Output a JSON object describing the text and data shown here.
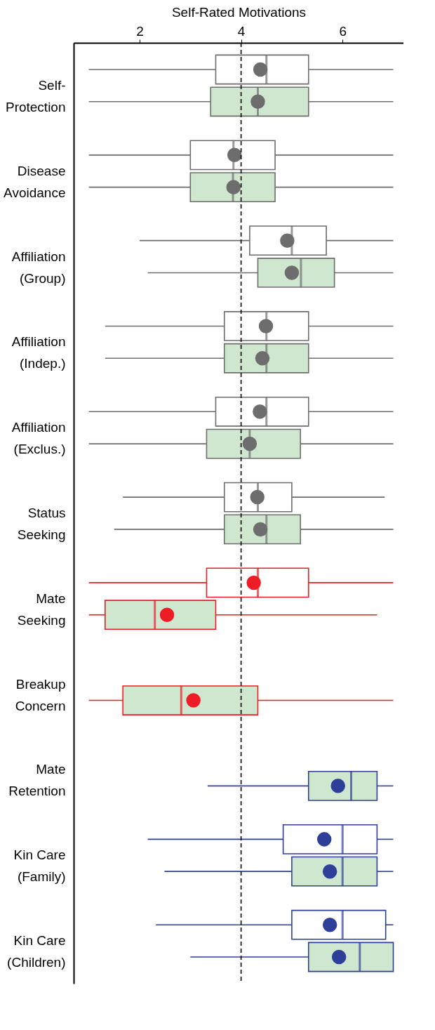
{
  "chart_data": {
    "type": "box",
    "orientation": "horizontal",
    "xlabel": "Self-Rated Motivations",
    "categories": [
      "Self-\nProtection",
      "Disease\nAvoidance",
      "Affiliation\n(Group)",
      "Affiliation\n(Indep.)",
      "Affiliation\n(Exclus.)",
      "Status\nSeeking",
      "Mate\nSeeking",
      "Breakup\nConcern",
      "Mate\nRetention",
      "Kin Care\n(Family)",
      "Kin Care\n(Children)"
    ],
    "xlim": [
      0.7,
      7.2
    ],
    "xticks": [
      2,
      4,
      6
    ],
    "grid": false,
    "ref_lines": [
      {
        "axis": "x",
        "value": 4,
        "line_style": "dashed",
        "color": "#000000"
      }
    ],
    "series": [
      {
        "color": "#ffffff",
        "colors": [
          "#6d6d6d",
          "#6d6d6d",
          "#6d6d6d",
          "#6d6d6d",
          "#6d6d6d",
          "#6d6d6d",
          "#ee1c24",
          null,
          null,
          "#2e3f99",
          "#2e3f99"
        ],
        "boxes": [
          {
            "low": 1,
            "q1": 3.5,
            "median": 4.5,
            "q3": 5.33,
            "high": 7,
            "mean": 4.38
          },
          {
            "low": 1,
            "q1": 3,
            "median": 3.85,
            "q3": 4.67,
            "high": 7,
            "mean": 3.87
          },
          {
            "low": 2,
            "q1": 4.17,
            "median": 5,
            "q3": 5.68,
            "high": 7,
            "mean": 4.91
          },
          {
            "low": 1.32,
            "q1": 3.67,
            "median": 4.5,
            "q3": 5.33,
            "high": 7,
            "mean": 4.49
          },
          {
            "low": 1,
            "q1": 3.5,
            "median": 4.5,
            "q3": 5.33,
            "high": 7,
            "mean": 4.37
          },
          {
            "low": 1.67,
            "q1": 3.67,
            "median": 4.33,
            "q3": 5,
            "high": 6.83,
            "mean": 4.32
          },
          {
            "low": 1,
            "q1": 3.32,
            "median": 4.33,
            "q3": 5.33,
            "high": 7,
            "mean": 4.25
          },
          null,
          null,
          {
            "low": 2.16,
            "q1": 4.83,
            "median": 6,
            "q3": 6.68,
            "high": 7,
            "mean": 5.64
          },
          {
            "low": 2.32,
            "q1": 5,
            "median": 6,
            "q3": 6.85,
            "high": 7,
            "mean": 5.75
          }
        ]
      },
      {
        "color": "#cfe6cf",
        "colors": [
          "#6d6d6d",
          "#6d6d6d",
          "#6d6d6d",
          "#6d6d6d",
          "#6d6d6d",
          "#6d6d6d",
          "#ee1c24",
          "#ee1c24",
          "#2e3f99",
          "#2e3f99",
          "#2e3f99"
        ],
        "boxes": [
          {
            "low": 1,
            "q1": 3.4,
            "median": 4.33,
            "q3": 5.33,
            "high": 7,
            "mean": 4.33
          },
          {
            "low": 1,
            "q1": 3,
            "median": 3.84,
            "q3": 4.67,
            "high": 7,
            "mean": 3.85
          },
          {
            "low": 2.16,
            "q1": 4.33,
            "median": 5.18,
            "q3": 5.84,
            "high": 7,
            "mean": 5
          },
          {
            "low": 1.32,
            "q1": 3.67,
            "median": 4.5,
            "q3": 5.33,
            "high": 7,
            "mean": 4.42
          },
          {
            "low": 1,
            "q1": 3.32,
            "median": 4.17,
            "q3": 5.17,
            "high": 7,
            "mean": 4.17
          },
          {
            "low": 1.5,
            "q1": 3.67,
            "median": 4.5,
            "q3": 5.17,
            "high": 7,
            "mean": 4.38
          },
          {
            "low": 1,
            "q1": 1.32,
            "median": 2.3,
            "q3": 3.5,
            "high": 6.68,
            "mean": 2.54
          },
          {
            "low": 1,
            "q1": 1.67,
            "median": 2.82,
            "q3": 4.33,
            "high": 7,
            "mean": 3.06
          },
          {
            "low": 3.34,
            "q1": 5.33,
            "median": 6.17,
            "q3": 6.68,
            "high": 7,
            "mean": 5.91
          },
          {
            "low": 2.49,
            "q1": 5,
            "median": 6,
            "q3": 6.68,
            "high": 7,
            "mean": 5.75
          },
          {
            "low": 3,
            "q1": 5.33,
            "median": 6.34,
            "q3": 7,
            "high": 7,
            "mean": 5.93
          }
        ]
      }
    ]
  }
}
